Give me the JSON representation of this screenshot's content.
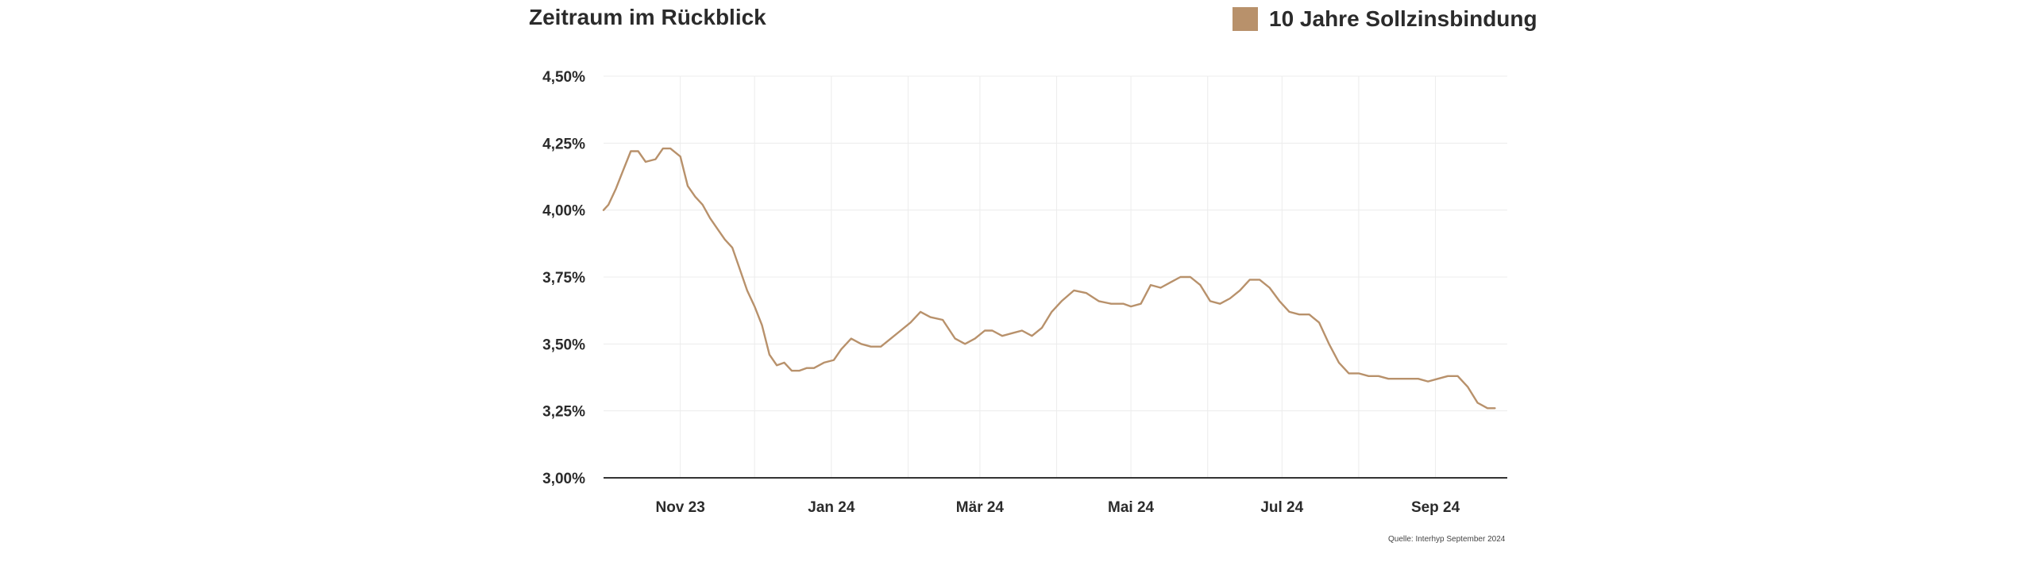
{
  "header": {
    "title": "Zeitraum im Rückblick",
    "legend_label": "10 Jahre Sollzinsbindung"
  },
  "source_note": "Quelle: Interhyp September 2024",
  "colors": {
    "series": "#b8916b",
    "grid": "#ececec",
    "axis": "#333333"
  },
  "chart_data": {
    "type": "line",
    "title": "Zeitraum im Rückblick",
    "xlabel": "",
    "ylabel": "",
    "grid": true,
    "legend_position": "top-right",
    "y_ticks": [
      3.0,
      3.25,
      3.5,
      3.75,
      4.0,
      4.25,
      4.5
    ],
    "y_tick_labels": [
      "3,00%",
      "3,25%",
      "3,50%",
      "3,75%",
      "4,00%",
      "4,25%",
      "4,50%"
    ],
    "ylim": [
      3.0,
      4.5
    ],
    "xlim": [
      "2023-10-01",
      "2024-09-30"
    ],
    "x_ticks": [
      "2023-11-01",
      "2024-01-01",
      "2024-03-01",
      "2024-05-01",
      "2024-07-01",
      "2024-09-01"
    ],
    "x_tick_labels": [
      "Nov 23",
      "Jan 24",
      "Mär 24",
      "Mai 24",
      "Jul 24",
      "Sep 24"
    ],
    "series": [
      {
        "name": "10 Jahre Sollzinsbindung",
        "x": [
          "2023-10-01",
          "2023-10-03",
          "2023-10-06",
          "2023-10-09",
          "2023-10-12",
          "2023-10-15",
          "2023-10-18",
          "2023-10-22",
          "2023-10-25",
          "2023-10-28",
          "2023-11-01",
          "2023-11-04",
          "2023-11-07",
          "2023-11-10",
          "2023-11-13",
          "2023-11-16",
          "2023-11-19",
          "2023-11-22",
          "2023-11-25",
          "2023-11-28",
          "2023-12-01",
          "2023-12-04",
          "2023-12-07",
          "2023-12-10",
          "2023-12-13",
          "2023-12-16",
          "2023-12-19",
          "2023-12-22",
          "2023-12-25",
          "2023-12-29",
          "2024-01-02",
          "2024-01-05",
          "2024-01-09",
          "2024-01-13",
          "2024-01-17",
          "2024-01-21",
          "2024-01-25",
          "2024-01-29",
          "2024-02-02",
          "2024-02-06",
          "2024-02-10",
          "2024-02-15",
          "2024-02-20",
          "2024-02-24",
          "2024-02-28",
          "2024-03-03",
          "2024-03-06",
          "2024-03-10",
          "2024-03-14",
          "2024-03-18",
          "2024-03-22",
          "2024-03-26",
          "2024-03-30",
          "2024-04-03",
          "2024-04-08",
          "2024-04-13",
          "2024-04-18",
          "2024-04-23",
          "2024-04-28",
          "2024-05-01",
          "2024-05-05",
          "2024-05-09",
          "2024-05-13",
          "2024-05-17",
          "2024-05-21",
          "2024-05-25",
          "2024-05-29",
          "2024-06-02",
          "2024-06-06",
          "2024-06-10",
          "2024-06-14",
          "2024-06-18",
          "2024-06-22",
          "2024-06-26",
          "2024-06-30",
          "2024-07-04",
          "2024-07-08",
          "2024-07-12",
          "2024-07-16",
          "2024-07-20",
          "2024-07-24",
          "2024-07-28",
          "2024-08-01",
          "2024-08-05",
          "2024-08-09",
          "2024-08-13",
          "2024-08-17",
          "2024-08-21",
          "2024-08-25",
          "2024-08-29",
          "2024-09-02",
          "2024-09-06",
          "2024-09-10",
          "2024-09-14",
          "2024-09-18",
          "2024-09-22",
          "2024-09-25"
        ],
        "y": [
          4.0,
          4.02,
          4.08,
          4.15,
          4.22,
          4.22,
          4.18,
          4.19,
          4.23,
          4.23,
          4.2,
          4.09,
          4.05,
          4.02,
          3.97,
          3.93,
          3.89,
          3.86,
          3.78,
          3.7,
          3.64,
          3.57,
          3.46,
          3.42,
          3.43,
          3.4,
          3.4,
          3.41,
          3.41,
          3.43,
          3.44,
          3.48,
          3.52,
          3.5,
          3.49,
          3.49,
          3.52,
          3.55,
          3.58,
          3.62,
          3.6,
          3.59,
          3.52,
          3.5,
          3.52,
          3.55,
          3.55,
          3.53,
          3.54,
          3.55,
          3.53,
          3.56,
          3.62,
          3.66,
          3.7,
          3.69,
          3.66,
          3.65,
          3.65,
          3.64,
          3.65,
          3.72,
          3.71,
          3.73,
          3.75,
          3.75,
          3.72,
          3.66,
          3.65,
          3.67,
          3.7,
          3.74,
          3.74,
          3.71,
          3.66,
          3.62,
          3.61,
          3.61,
          3.58,
          3.5,
          3.43,
          3.39,
          3.39,
          3.38,
          3.38,
          3.37,
          3.37,
          3.37,
          3.37,
          3.36,
          3.37,
          3.38,
          3.38,
          3.34,
          3.28,
          3.26,
          3.26
        ]
      }
    ]
  }
}
